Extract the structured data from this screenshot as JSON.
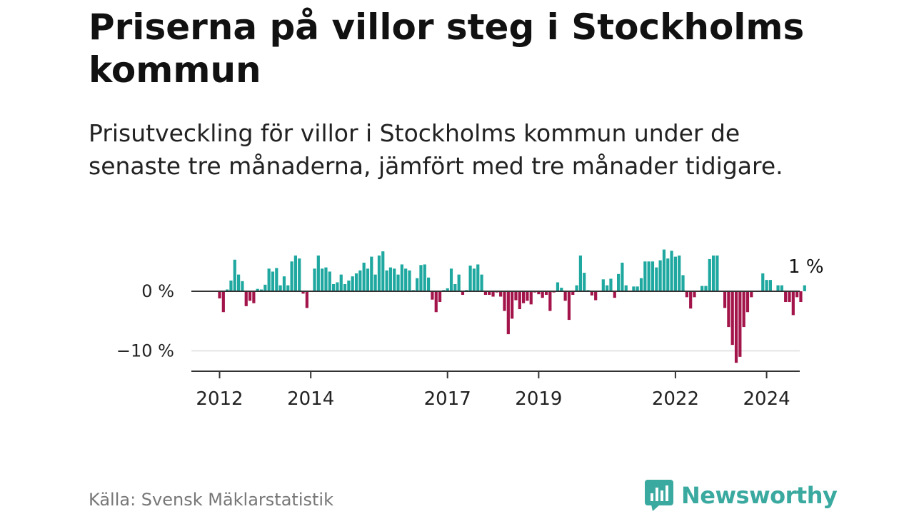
{
  "title": "Priserna på villor steg i Stockholms kommun",
  "subtitle": "Prisutveckling för villor i Stockholms kommun under de senaste tre månaderna, jämfört med tre månader tidigare.",
  "source": "Källa: Svensk Mäklarstatistik",
  "brand": "Newsworthy",
  "colors": {
    "positive": "#1fa8a0",
    "negative": "#a3144a",
    "brand": "#3aa99f"
  },
  "chart_data": {
    "type": "bar",
    "ylim": [
      -14,
      8
    ],
    "y_ticks": [
      0,
      -10
    ],
    "y_tick_labels": [
      "0 %",
      "−10 %"
    ],
    "x_ticks": [
      2012,
      2014,
      2017,
      2019,
      2022,
      2024
    ],
    "x_tick_labels": [
      "2012",
      "2014",
      "2017",
      "2019",
      "2022",
      "2024"
    ],
    "start_year": 2012,
    "annotation": "1 %",
    "values": [
      -1.2,
      -3.5,
      0.3,
      1.8,
      5.3,
      2.8,
      1.7,
      -2.5,
      -1.6,
      -2.0,
      0.4,
      0.3,
      1.1,
      3.8,
      3.3,
      3.9,
      1.0,
      2.5,
      1.0,
      5.0,
      6.0,
      5.5,
      -0.4,
      -2.8,
      0.1,
      3.8,
      6.0,
      3.8,
      4.0,
      3.3,
      1.2,
      1.5,
      2.8,
      1.2,
      1.8,
      2.5,
      3.0,
      3.5,
      4.8,
      3.8,
      5.8,
      2.8,
      6.0,
      6.7,
      3.5,
      4.0,
      3.8,
      2.8,
      4.5,
      3.8,
      3.5,
      0.2,
      2.2,
      4.4,
      4.5,
      2.3,
      -1.4,
      -3.5,
      -1.8,
      0.2,
      0.5,
      3.8,
      1.2,
      2.8,
      -0.6,
      0.2,
      4.3,
      3.8,
      4.5,
      2.8,
      -0.6,
      -0.6,
      -0.9,
      -0.2,
      -0.9,
      -3.3,
      -7.2,
      -4.6,
      -1.5,
      -3.0,
      -2.0,
      -1.6,
      -2.2,
      -0.2,
      -0.5,
      -1.1,
      -0.6,
      -3.3,
      -0.2,
      1.5,
      0.6,
      -1.6,
      -4.8,
      -0.6,
      1.0,
      6.0,
      3.1,
      0.2,
      -0.7,
      -1.5,
      0.1,
      2.0,
      1.0,
      2.1,
      -1.1,
      2.9,
      4.8,
      1.0,
      0.1,
      0.8,
      0.8,
      2.2,
      5.0,
      5.0,
      5.0,
      4.0,
      5.2,
      7.0,
      5.5,
      6.8,
      5.8,
      6.0,
      2.7,
      -1.0,
      -2.9,
      -1.0,
      0.1,
      0.9,
      0.9,
      5.4,
      6.0,
      6.0,
      0.1,
      -2.8,
      -6.0,
      -9.0,
      -12.0,
      -11.0,
      -6.0,
      -3.5,
      -1.0,
      0.1,
      0.1,
      3.0,
      1.9,
      1.9,
      0.1,
      1.0,
      1.0,
      -1.8,
      -1.8,
      -4.0,
      -1.0,
      -1.8,
      1.0
    ]
  }
}
